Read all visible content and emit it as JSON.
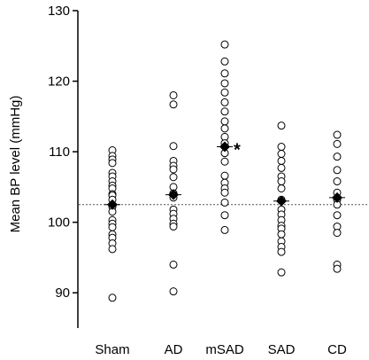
{
  "chart_data": {
    "type": "scatter",
    "ylabel": "Mean BP level (mmHg)",
    "xlabel": "",
    "ylim": [
      85,
      130
    ],
    "yticks": [
      90,
      100,
      110,
      120,
      130
    ],
    "categories": [
      "Sham",
      "AD",
      "mSAD",
      "SAD",
      "CD"
    ],
    "reference_line": 102.5,
    "significance_marker": {
      "category": "mSAD",
      "text": "*"
    },
    "means": [
      102.5,
      103.9,
      110.7,
      103.0,
      103.5
    ],
    "points": [
      [
        110.2,
        109.4,
        108.9,
        108.4,
        107.0,
        106.5,
        105.8,
        105.2,
        104.8,
        104.0,
        103.8,
        103.2,
        102.2,
        101.5,
        100.3,
        99.8,
        99.3,
        98.3,
        97.8,
        97.0,
        96.2,
        89.3
      ],
      [
        118.0,
        116.7,
        110.8,
        108.7,
        108.0,
        107.5,
        106.4,
        105.0,
        104.1,
        103.5,
        101.8,
        101.2,
        100.5,
        99.8,
        99.4,
        94.0,
        90.2
      ],
      [
        125.2,
        122.8,
        121.1,
        119.7,
        118.4,
        117.0,
        115.7,
        114.3,
        113.3,
        112.1,
        111.2,
        109.8,
        108.6,
        106.6,
        105.6,
        104.8,
        104.2,
        102.8,
        101.0,
        98.9
      ],
      [
        113.7,
        110.7,
        109.7,
        108.7,
        107.7,
        106.5,
        105.8,
        104.8,
        103.2,
        101.8,
        101.1,
        100.3,
        99.5,
        99.1,
        98.3,
        97.3,
        96.5,
        95.8,
        92.9
      ],
      [
        112.4,
        111.1,
        109.3,
        107.4,
        105.8,
        104.2,
        103.2,
        102.5,
        101.0,
        99.4,
        98.5,
        94.0,
        93.4
      ]
    ],
    "marker_styles": {
      "points": "open-circle",
      "means": "filled-diamond"
    },
    "reference_line_style": "dotted",
    "grid": false,
    "legend": "none"
  }
}
